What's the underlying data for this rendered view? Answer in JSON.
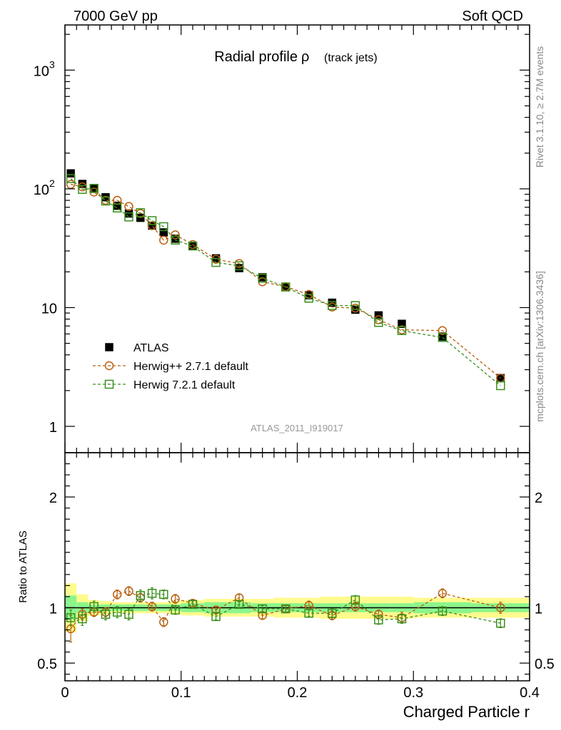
{
  "header": {
    "left": "7000 GeV pp",
    "right": "Soft QCD"
  },
  "side_labels": {
    "rivet": "Rivet 3.1.10, ≥ 2.7M events",
    "mcplots": "mcplots.cern.ch [arXiv:1306.3436]"
  },
  "colors": {
    "atlas": "#000000",
    "herwigpp": "#b8600f",
    "herwig7": "#3a8f1c",
    "band_outer": "#fffa8c",
    "band_inner": "#8cf58c"
  },
  "chart_data": [
    {
      "type": "scatter",
      "title": "Radial profile",
      "title_symbol": "ρ",
      "title_suffix": "(track jets)",
      "analysis_label": "ATLAS_2011_I919017",
      "yscale": "log",
      "xlim": [
        0,
        0.4
      ],
      "ylim": [
        0.6,
        2400
      ],
      "y_ticks": [
        {
          "value": 1,
          "label": "1"
        },
        {
          "value": 10,
          "label": "10"
        },
        {
          "value": 100,
          "label": "10",
          "sup": "2"
        },
        {
          "value": 1000,
          "label": "10",
          "sup": "3"
        }
      ],
      "x": [
        0.005,
        0.015,
        0.025,
        0.035,
        0.045,
        0.055,
        0.065,
        0.075,
        0.085,
        0.095,
        0.11,
        0.13,
        0.15,
        0.17,
        0.19,
        0.21,
        0.23,
        0.25,
        0.27,
        0.29,
        0.325,
        0.375
      ],
      "series": [
        {
          "name": "ATLAS",
          "marker": "filled-square",
          "values": [
            135,
            110,
            100,
            85,
            72,
            62,
            57,
            49,
            43,
            38,
            33,
            26,
            21.5,
            18,
            15,
            12.7,
            11,
            9.6,
            8.6,
            7.3,
            5.7,
            2.55
          ]
        },
        {
          "name": "Herwig++ 2.7.1 default",
          "marker": "open-circle",
          "values": [
            109,
            104,
            94,
            80,
            80,
            71,
            62,
            49,
            37,
            41,
            34,
            25.5,
            23.5,
            16.5,
            15,
            12.9,
            10.1,
            9.9,
            7.9,
            6.5,
            6.4,
            2.55
          ]
        },
        {
          "name": "Herwig 7.2.1 default",
          "marker": "open-square",
          "values": [
            122,
            99,
            101,
            79,
            69,
            58,
            63,
            54,
            48,
            37,
            33,
            24,
            22.5,
            17.7,
            14.9,
            12,
            10.4,
            10.4,
            7.5,
            6.4,
            5.6,
            2.2
          ]
        }
      ]
    },
    {
      "type": "scatter",
      "ylabel": "Ratio to ATLAS",
      "xlabel": "Charged Particle r",
      "xlim": [
        0,
        0.4
      ],
      "ylim": [
        0.34,
        2.4
      ],
      "x_ticks": [
        {
          "value": 0,
          "label": "0"
        },
        {
          "value": 0.1,
          "label": "0.1"
        },
        {
          "value": 0.2,
          "label": "0.2"
        },
        {
          "value": 0.3,
          "label": "0.3"
        },
        {
          "value": 0.4,
          "label": "0.4"
        }
      ],
      "y_ticks": [
        {
          "value": 0.5,
          "label": "0.5"
        },
        {
          "value": 1,
          "label": "1"
        },
        {
          "value": 2,
          "label": "2"
        }
      ],
      "x": [
        0.005,
        0.015,
        0.025,
        0.035,
        0.045,
        0.055,
        0.065,
        0.075,
        0.085,
        0.095,
        0.11,
        0.13,
        0.15,
        0.17,
        0.19,
        0.21,
        0.23,
        0.25,
        0.27,
        0.29,
        0.325,
        0.375
      ],
      "bins": [
        [
          0,
          0.01
        ],
        [
          0.01,
          0.02
        ],
        [
          0.02,
          0.03
        ],
        [
          0.03,
          0.04
        ],
        [
          0.04,
          0.05
        ],
        [
          0.05,
          0.06
        ],
        [
          0.06,
          0.07
        ],
        [
          0.07,
          0.08
        ],
        [
          0.08,
          0.09
        ],
        [
          0.09,
          0.1
        ],
        [
          0.1,
          0.12
        ],
        [
          0.12,
          0.14
        ],
        [
          0.14,
          0.16
        ],
        [
          0.16,
          0.18
        ],
        [
          0.18,
          0.2
        ],
        [
          0.2,
          0.22
        ],
        [
          0.22,
          0.24
        ],
        [
          0.24,
          0.26
        ],
        [
          0.26,
          0.28
        ],
        [
          0.28,
          0.3
        ],
        [
          0.3,
          0.35
        ],
        [
          0.35,
          0.4
        ]
      ],
      "band_total": [
        0.22,
        0.12,
        0.07,
        0.06,
        0.05,
        0.05,
        0.05,
        0.05,
        0.05,
        0.06,
        0.07,
        0.08,
        0.08,
        0.08,
        0.09,
        0.09,
        0.1,
        0.1,
        0.1,
        0.1,
        0.09,
        0.09
      ],
      "band_stat": [
        0.11,
        0.05,
        0.03,
        0.03,
        0.03,
        0.03,
        0.03,
        0.03,
        0.03,
        0.03,
        0.04,
        0.05,
        0.05,
        0.04,
        0.04,
        0.04,
        0.04,
        0.04,
        0.04,
        0.04,
        0.05,
        0.04
      ],
      "series": [
        {
          "name": "Herwig++ 2.7.1 default",
          "values": [
            0.81,
            0.94,
            0.96,
            0.96,
            1.12,
            1.15,
            1.09,
            1.01,
            0.87,
            1.08,
            1.04,
            0.98,
            1.09,
            0.93,
            0.99,
            1.02,
            0.93,
            1.01,
            0.94,
            0.91,
            1.13,
            1.0
          ],
          "errors": [
            0.12,
            0.05,
            0.04,
            0.04,
            0.04,
            0.04,
            0.04,
            0.04,
            0.04,
            0.04,
            0.03,
            0.03,
            0.03,
            0.03,
            0.03,
            0.04,
            0.04,
            0.04,
            0.04,
            0.05,
            0.04,
            0.05
          ]
        },
        {
          "name": "Herwig 7.2.1 default",
          "values": [
            0.91,
            0.9,
            1.01,
            0.94,
            0.96,
            0.94,
            1.11,
            1.13,
            1.12,
            0.98,
            1.03,
            0.92,
            1.03,
            0.99,
            0.99,
            0.95,
            0.95,
            1.07,
            0.89,
            0.9,
            0.97,
            0.86
          ],
          "errors": [
            0.07,
            0.06,
            0.05,
            0.05,
            0.05,
            0.05,
            0.05,
            0.05,
            0.04,
            0.04,
            0.03,
            0.03,
            0.03,
            0.03,
            0.03,
            0.03,
            0.04,
            0.04,
            0.04,
            0.04,
            0.04,
            0.04
          ]
        }
      ]
    }
  ]
}
